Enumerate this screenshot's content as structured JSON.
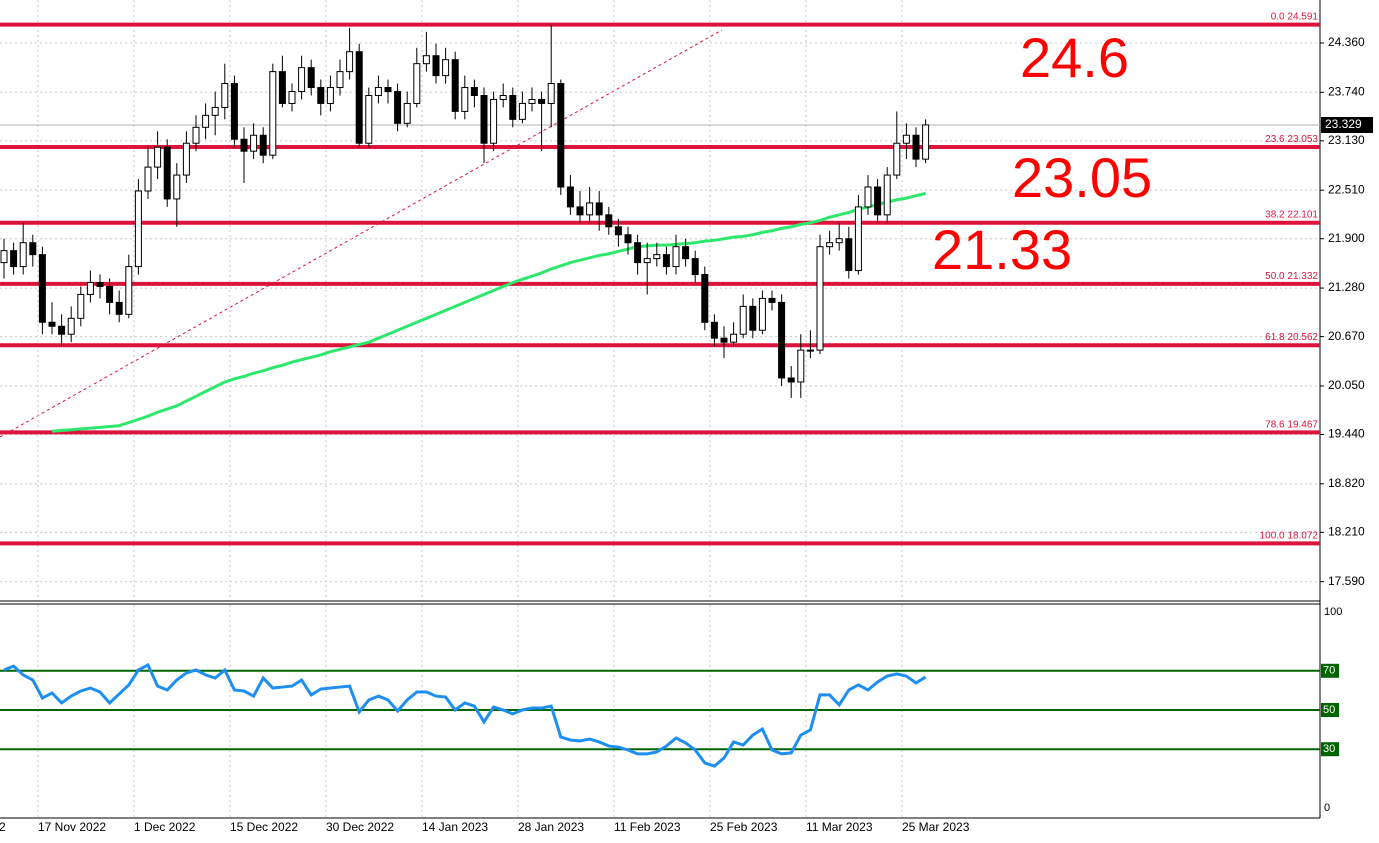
{
  "chart_data": {
    "type": "candlestick",
    "ylim": [
      17.36,
      24.9
    ],
    "yticks": [
      {
        "value": 24.36,
        "label": "24.360"
      },
      {
        "value": 23.74,
        "label": "23.740"
      },
      {
        "value": 23.13,
        "label": "23.130"
      },
      {
        "value": 22.51,
        "label": "22.510"
      },
      {
        "value": 21.9,
        "label": "21.900"
      },
      {
        "value": 21.28,
        "label": "21.280"
      },
      {
        "value": 20.67,
        "label": "20.670"
      },
      {
        "value": 20.05,
        "label": "20.050"
      },
      {
        "value": 19.44,
        "label": "19.440"
      },
      {
        "value": 18.82,
        "label": "18.820"
      },
      {
        "value": 18.21,
        "label": "18.210"
      },
      {
        "value": 17.59,
        "label": "17.590"
      }
    ],
    "grid": true,
    "xtick_labels": [
      "2",
      "17 Nov 2022",
      "1 Dec 2022",
      "15 Dec 2022",
      "30 Dec 2022",
      "14 Jan 2023",
      "28 Jan 2023",
      "11 Feb 2023",
      "25 Feb 2023",
      "11 Mar 2023",
      "25 Mar 2023"
    ],
    "current_price": 23.329,
    "candles": [
      [
        21.6,
        21.9,
        21.4,
        21.75
      ],
      [
        21.75,
        21.85,
        21.45,
        21.55
      ],
      [
        21.55,
        22.1,
        21.45,
        21.85
      ],
      [
        21.85,
        21.95,
        21.55,
        21.7
      ],
      [
        21.7,
        21.8,
        20.7,
        20.85
      ],
      [
        20.85,
        21.1,
        20.7,
        20.8
      ],
      [
        20.8,
        20.95,
        20.55,
        20.7
      ],
      [
        20.7,
        21.05,
        20.6,
        20.9
      ],
      [
        20.9,
        21.3,
        20.8,
        21.2
      ],
      [
        21.2,
        21.5,
        21.1,
        21.35
      ],
      [
        21.35,
        21.45,
        21.15,
        21.3
      ],
      [
        21.3,
        21.4,
        20.95,
        21.1
      ],
      [
        21.1,
        21.25,
        20.85,
        20.95
      ],
      [
        20.95,
        21.7,
        20.9,
        21.55
      ],
      [
        21.55,
        22.65,
        21.45,
        22.5
      ],
      [
        22.5,
        23.05,
        22.4,
        22.8
      ],
      [
        22.8,
        23.25,
        22.65,
        23.05
      ],
      [
        23.05,
        23.15,
        22.3,
        22.4
      ],
      [
        22.4,
        22.85,
        22.05,
        22.7
      ],
      [
        22.7,
        23.25,
        22.6,
        23.1
      ],
      [
        23.1,
        23.45,
        23.0,
        23.3
      ],
      [
        23.3,
        23.6,
        23.15,
        23.45
      ],
      [
        23.45,
        23.75,
        23.2,
        23.55
      ],
      [
        23.55,
        24.1,
        23.4,
        23.85
      ],
      [
        23.85,
        23.95,
        23.05,
        23.15
      ],
      [
        23.15,
        23.3,
        22.6,
        23.0
      ],
      [
        23.0,
        23.35,
        22.9,
        23.2
      ],
      [
        23.2,
        23.3,
        22.85,
        22.95
      ],
      [
        22.95,
        24.1,
        22.9,
        24.0
      ],
      [
        24.0,
        24.2,
        23.55,
        23.6
      ],
      [
        23.6,
        23.85,
        23.5,
        23.75
      ],
      [
        23.75,
        24.2,
        23.65,
        24.05
      ],
      [
        24.05,
        24.15,
        23.7,
        23.8
      ],
      [
        23.8,
        23.9,
        23.45,
        23.6
      ],
      [
        23.6,
        23.95,
        23.5,
        23.8
      ],
      [
        23.8,
        24.15,
        23.7,
        24.0
      ],
      [
        24.0,
        24.55,
        23.9,
        24.25
      ],
      [
        24.25,
        24.35,
        23.05,
        23.1
      ],
      [
        23.1,
        23.8,
        23.05,
        23.7
      ],
      [
        23.7,
        23.95,
        23.6,
        23.8
      ],
      [
        23.8,
        23.9,
        23.6,
        23.75
      ],
      [
        23.75,
        23.85,
        23.25,
        23.35
      ],
      [
        23.35,
        23.75,
        23.3,
        23.6
      ],
      [
        23.6,
        24.3,
        23.55,
        24.1
      ],
      [
        24.1,
        24.5,
        24.0,
        24.2
      ],
      [
        24.2,
        24.35,
        23.85,
        23.95
      ],
      [
        23.95,
        24.3,
        23.85,
        24.15
      ],
      [
        24.15,
        24.25,
        23.4,
        23.5
      ],
      [
        23.5,
        23.95,
        23.4,
        23.8
      ],
      [
        23.8,
        23.9,
        23.55,
        23.7
      ],
      [
        23.7,
        23.8,
        22.85,
        23.1
      ],
      [
        23.1,
        23.75,
        23.0,
        23.65
      ],
      [
        23.65,
        23.85,
        23.55,
        23.7
      ],
      [
        23.7,
        23.8,
        23.3,
        23.4
      ],
      [
        23.4,
        23.75,
        23.35,
        23.6
      ],
      [
        23.6,
        23.8,
        23.5,
        23.65
      ],
      [
        23.65,
        23.75,
        23.0,
        23.6
      ],
      [
        23.6,
        24.59,
        23.3,
        23.85
      ],
      [
        23.85,
        23.9,
        22.45,
        22.55
      ],
      [
        22.55,
        22.7,
        22.2,
        22.3
      ],
      [
        22.3,
        22.5,
        22.1,
        22.2
      ],
      [
        22.2,
        22.55,
        22.1,
        22.35
      ],
      [
        22.35,
        22.5,
        22.0,
        22.2
      ],
      [
        22.2,
        22.3,
        21.95,
        22.05
      ],
      [
        22.05,
        22.15,
        21.8,
        21.95
      ],
      [
        21.95,
        22.05,
        21.7,
        21.85
      ],
      [
        21.85,
        21.95,
        21.45,
        21.6
      ],
      [
        21.6,
        21.85,
        21.2,
        21.65
      ],
      [
        21.65,
        21.85,
        21.55,
        21.7
      ],
      [
        21.7,
        21.8,
        21.45,
        21.55
      ],
      [
        21.55,
        21.95,
        21.45,
        21.8
      ],
      [
        21.8,
        21.9,
        21.55,
        21.65
      ],
      [
        21.65,
        21.75,
        21.35,
        21.45
      ],
      [
        21.45,
        21.55,
        20.75,
        20.85
      ],
      [
        20.85,
        20.95,
        20.55,
        20.65
      ],
      [
        20.65,
        20.8,
        20.4,
        20.6
      ],
      [
        20.6,
        20.85,
        20.55,
        20.7
      ],
      [
        20.7,
        21.2,
        20.65,
        21.05
      ],
      [
        21.05,
        21.15,
        20.65,
        20.75
      ],
      [
        20.75,
        21.25,
        20.7,
        21.15
      ],
      [
        21.15,
        21.25,
        21.0,
        21.1
      ],
      [
        21.1,
        21.2,
        20.05,
        20.15
      ],
      [
        20.15,
        20.3,
        19.9,
        20.1
      ],
      [
        20.1,
        20.7,
        19.9,
        20.5
      ],
      [
        20.5,
        20.75,
        20.4,
        20.5
      ],
      [
        20.5,
        21.95,
        20.45,
        21.8
      ],
      [
        21.8,
        22.0,
        21.7,
        21.85
      ],
      [
        21.85,
        22.1,
        21.75,
        21.9
      ],
      [
        21.9,
        22.05,
        21.4,
        21.5
      ],
      [
        21.5,
        22.45,
        21.45,
        22.3
      ],
      [
        22.3,
        22.7,
        22.2,
        22.55
      ],
      [
        22.55,
        22.65,
        22.1,
        22.2
      ],
      [
        22.2,
        22.8,
        22.1,
        22.7
      ],
      [
        22.7,
        23.5,
        22.65,
        23.1
      ],
      [
        23.1,
        23.35,
        22.9,
        23.2
      ],
      [
        23.2,
        23.3,
        22.8,
        22.9
      ],
      [
        22.9,
        23.4,
        22.85,
        23.33
      ]
    ],
    "ma": {
      "color": "#2ee86e",
      "values": [
        null,
        null,
        null,
        null,
        null,
        19.48,
        19.49,
        19.5,
        19.51,
        19.52,
        19.53,
        19.54,
        19.55,
        19.59,
        19.63,
        19.67,
        19.72,
        19.76,
        19.8,
        19.86,
        19.92,
        19.98,
        20.04,
        20.1,
        20.14,
        20.17,
        20.21,
        20.24,
        20.28,
        20.31,
        20.35,
        20.38,
        20.41,
        20.44,
        20.48,
        20.51,
        20.54,
        20.57,
        20.6,
        20.65,
        20.7,
        20.75,
        20.8,
        20.85,
        20.9,
        20.95,
        21.0,
        21.05,
        21.1,
        21.15,
        21.2,
        21.25,
        21.3,
        21.35,
        21.39,
        21.43,
        21.47,
        21.52,
        21.56,
        21.6,
        21.63,
        21.66,
        21.69,
        21.71,
        21.74,
        21.77,
        21.8,
        21.81,
        21.82,
        21.82,
        21.83,
        21.84,
        21.85,
        21.87,
        21.88,
        21.9,
        21.92,
        21.93,
        21.95,
        21.98,
        22.0,
        22.03,
        22.05,
        22.08,
        22.1,
        22.13,
        22.17,
        22.2,
        22.23,
        22.27,
        22.3,
        22.33,
        22.36,
        22.39,
        22.41,
        22.44,
        22.47
      ]
    },
    "fib_color": "#dc143c",
    "fib_levels": [
      {
        "ratio": "0.0",
        "price": 24.591
      },
      {
        "ratio": "23.6",
        "price": 23.053
      },
      {
        "ratio": "38.2",
        "price": 22.101
      },
      {
        "ratio": "50.0",
        "price": 21.332
      },
      {
        "ratio": "61.8",
        "price": 20.562
      },
      {
        "ratio": "78.6",
        "price": 19.467
      },
      {
        "ratio": "100.0",
        "price": 18.072
      }
    ],
    "annotations": [
      "24.6",
      "23.05",
      "21.33"
    ],
    "annotation_color": "#ff0000",
    "rsi": {
      "color": "#1e8ff0",
      "ylim": [
        0,
        100
      ],
      "yticks": [
        100,
        0
      ],
      "levels": [
        70,
        50,
        30
      ],
      "level_color": "#006400",
      "values": [
        70.4,
        72.4,
        67.9,
        65.3,
        56.1,
        58.7,
        53.6,
        57.1,
        59.7,
        61.2,
        59.2,
        53.6,
        58.2,
        62.8,
        70.4,
        73.0,
        62.2,
        60.2,
        65.3,
        68.9,
        70.4,
        67.9,
        66.3,
        70.4,
        60.2,
        59.7,
        57.1,
        66.3,
        61.2,
        61.7,
        62.2,
        65.3,
        57.7,
        60.7,
        61.2,
        61.7,
        62.2,
        49.0,
        55.1,
        57.1,
        55.1,
        49.5,
        55.1,
        59.2,
        59.2,
        57.1,
        56.6,
        50.0,
        53.6,
        52.0,
        43.9,
        51.5,
        50.0,
        48.0,
        50.0,
        51.0,
        51.0,
        52.0,
        36.2,
        34.7,
        34.2,
        35.2,
        33.7,
        31.6,
        31.1,
        29.6,
        27.6,
        27.6,
        28.6,
        31.6,
        35.7,
        33.2,
        29.6,
        23.0,
        21.4,
        25.5,
        33.7,
        32.1,
        37.2,
        40.3,
        29.6,
        27.6,
        28.1,
        37.2,
        39.8,
        57.7,
        57.7,
        52.6,
        60.2,
        62.8,
        60.2,
        64.3,
        67.3,
        68.4,
        67.3,
        63.8,
        66.8
      ]
    }
  }
}
